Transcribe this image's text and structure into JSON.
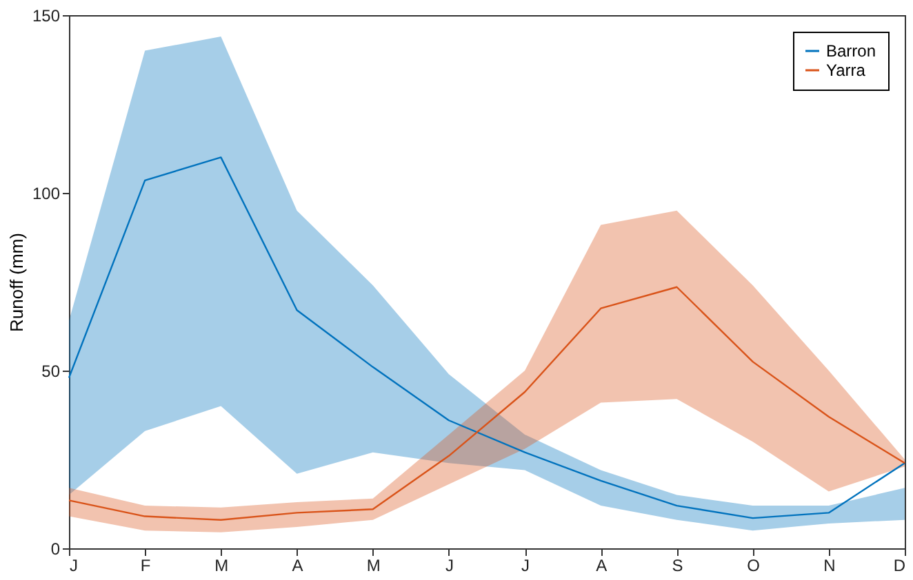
{
  "chart_data": {
    "type": "line",
    "ylabel": "Runoff (mm)",
    "categories": [
      "J",
      "F",
      "M",
      "A",
      "M",
      "J",
      "J",
      "A",
      "S",
      "O",
      "N",
      "D"
    ],
    "series": [
      {
        "name": "Barron",
        "color": "#0072bd",
        "values": [
          48,
          103.5,
          110,
          67,
          51,
          36,
          27,
          19,
          12,
          8.5,
          10,
          24
        ],
        "lower": [
          15,
          33,
          40,
          21,
          27,
          24,
          22,
          12,
          8,
          5,
          7,
          8
        ],
        "upper": [
          64,
          140,
          144,
          95,
          74,
          49,
          32,
          22,
          15,
          12,
          12,
          17
        ]
      },
      {
        "name": "Yarra",
        "color": "#d95319",
        "values": [
          13.5,
          9,
          8,
          10,
          11,
          26,
          44,
          67.5,
          73.5,
          52.5,
          37,
          24
        ],
        "lower": [
          9,
          5,
          4.5,
          6,
          8,
          18,
          28,
          41,
          42,
          30,
          16,
          23
        ],
        "upper": [
          17,
          12,
          11.5,
          13,
          14,
          32,
          50,
          91,
          95,
          74,
          50,
          25
        ]
      }
    ],
    "ylim": [
      0,
      150
    ],
    "yticks": [
      0,
      50,
      100,
      150
    ],
    "grid": false,
    "legend": "top right",
    "marker": "none",
    "line_style": "solid"
  }
}
